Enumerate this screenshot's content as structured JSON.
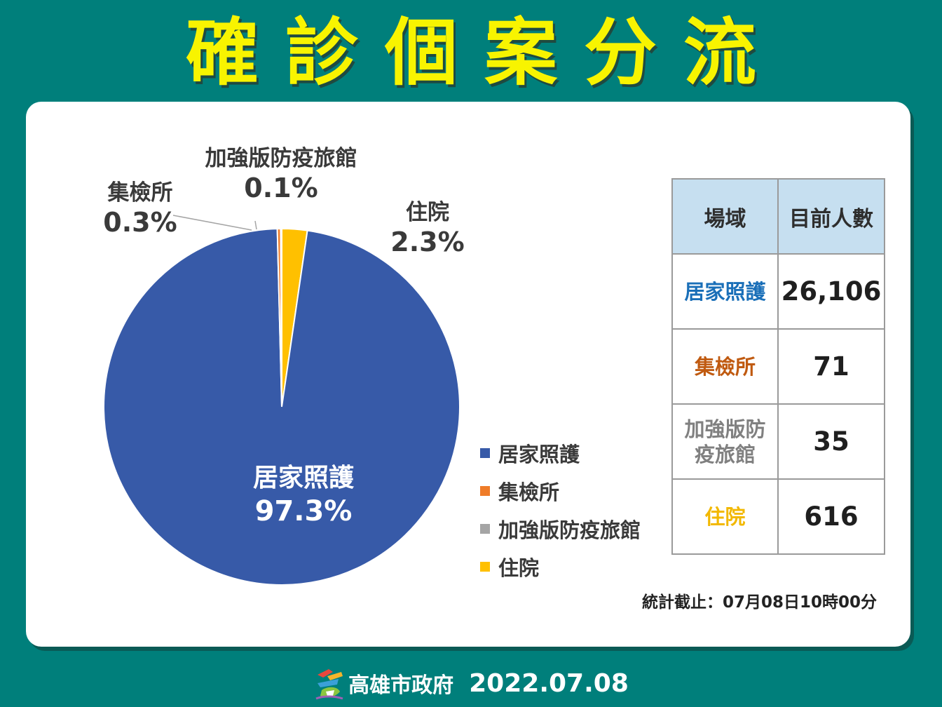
{
  "title": "確診個案分流",
  "chart_data": {
    "type": "pie",
    "categories": [
      "居家照護",
      "集檢所",
      "加強版防疫旅館",
      "住院"
    ],
    "values": [
      97.3,
      0.3,
      0.1,
      2.3
    ],
    "labels": [
      "97.3%",
      "0.3%",
      "0.1%",
      "2.3%"
    ],
    "colors": [
      "#375aa8",
      "#ef7c29",
      "#a5a5a5",
      "#ffc000"
    ],
    "legend": "right",
    "legend_label_colors": [
      "#3a3a3a",
      "#3a3a3a",
      "#3a3a3a",
      "#3a3a3a"
    ]
  },
  "table": {
    "headers": [
      "場域",
      "目前人數"
    ],
    "rows": [
      {
        "venue": "居家照護",
        "count": "26,106",
        "color": "#1a6fb8"
      },
      {
        "venue": "集檢所",
        "count": "71",
        "color": "#c05a10"
      },
      {
        "venue": "加強版防疫旅館",
        "count": "35",
        "color": "#808080"
      },
      {
        "venue": "住院",
        "count": "616",
        "color": "#f2b800"
      }
    ]
  },
  "cutoff": "統計截止：07月08日10時00分",
  "footer": {
    "org": "高雄市政府",
    "date": "2022.07.08"
  }
}
